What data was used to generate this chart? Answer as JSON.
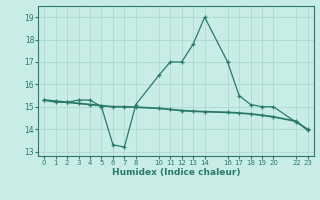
{
  "line1_x": [
    0,
    1,
    2,
    3,
    4,
    5,
    6,
    7,
    8,
    10,
    11,
    12,
    13,
    14,
    16,
    17,
    18,
    19,
    20,
    22,
    23
  ],
  "line1_y": [
    15.3,
    15.2,
    15.2,
    15.3,
    15.3,
    15.0,
    13.3,
    13.2,
    15.1,
    16.4,
    17.0,
    17.0,
    17.8,
    19.0,
    17.0,
    15.5,
    15.1,
    15.0,
    15.0,
    14.3,
    14.0
  ],
  "line2_x": [
    0,
    1,
    2,
    3,
    4,
    5,
    6,
    7,
    8,
    10,
    11,
    12,
    13,
    14,
    16,
    17,
    18,
    19,
    20,
    22,
    23
  ],
  "line2_y": [
    15.3,
    15.25,
    15.2,
    15.15,
    15.1,
    15.05,
    15.0,
    15.0,
    14.98,
    14.93,
    14.88,
    14.83,
    14.8,
    14.78,
    14.75,
    14.72,
    14.68,
    14.62,
    14.55,
    14.35,
    13.95
  ],
  "color": "#2a7a6c",
  "bg_color": "#c8ece6",
  "grid_color": "#aad4cc",
  "xlabel": "Humidex (Indice chaleur)",
  "ylim": [
    12.8,
    19.5
  ],
  "xlim": [
    -0.5,
    23.5
  ],
  "yticks": [
    13,
    14,
    15,
    16,
    17,
    18,
    19
  ],
  "xtick_positions": [
    0,
    1,
    2,
    3,
    4,
    5,
    6,
    7,
    8,
    10,
    11,
    12,
    13,
    14,
    16,
    17,
    18,
    19,
    20,
    22,
    23
  ],
  "xtick_labels": [
    "0",
    "1",
    "2",
    "3",
    "4",
    "5",
    "6",
    "7",
    "8",
    "10",
    "11",
    "12",
    "13",
    "14",
    "16",
    "17",
    "18",
    "19",
    "20",
    "22",
    "23"
  ]
}
